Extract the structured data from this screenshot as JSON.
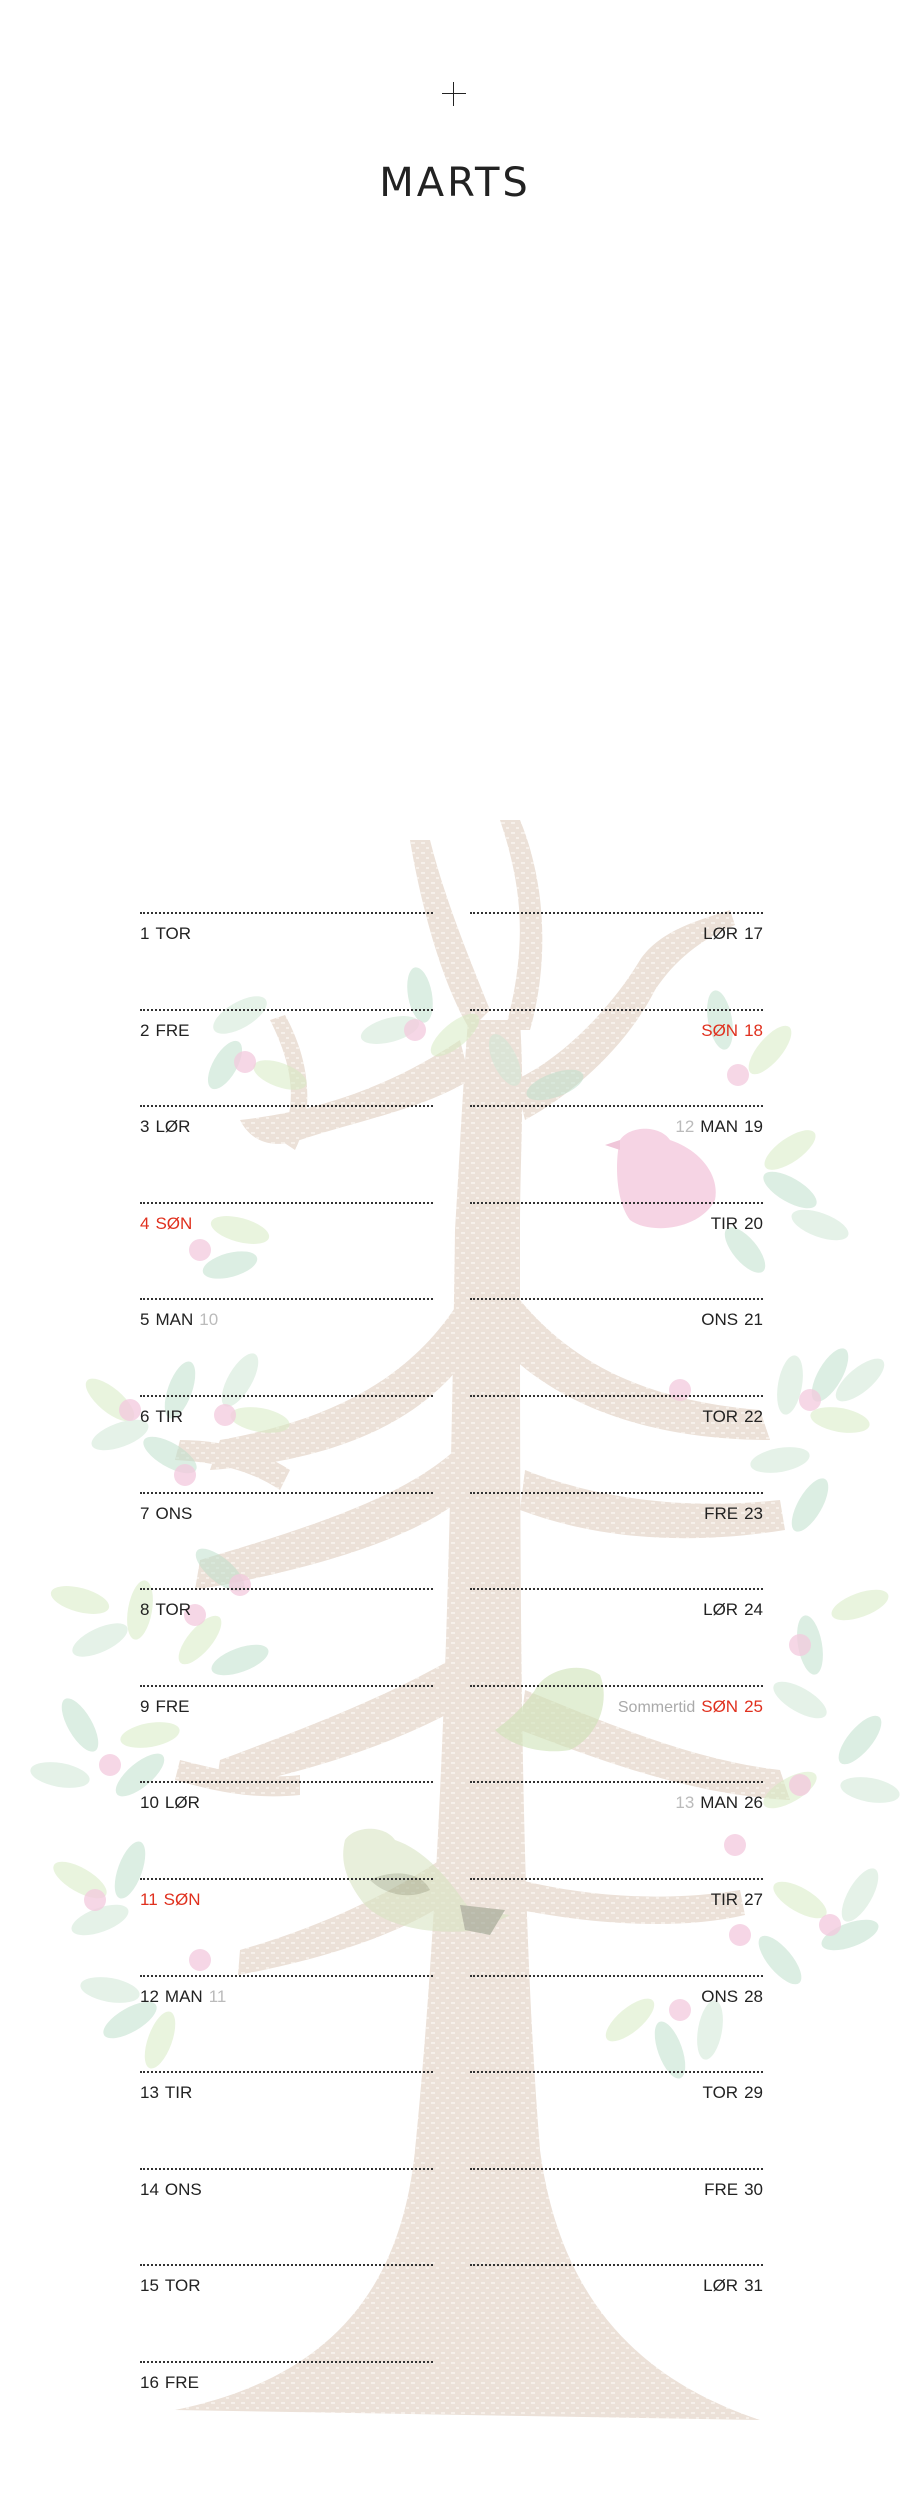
{
  "month": "MARTS",
  "accent_color": "#e0301e",
  "left_days": [
    {
      "num": "1",
      "day": "TOR",
      "week": "",
      "sunday": false
    },
    {
      "num": "2",
      "day": "FRE",
      "week": "",
      "sunday": false
    },
    {
      "num": "3",
      "day": "LØR",
      "week": "",
      "sunday": false
    },
    {
      "num": "4",
      "day": "SØN",
      "week": "",
      "sunday": true
    },
    {
      "num": "5",
      "day": "MAN",
      "week": "10",
      "sunday": false
    },
    {
      "num": "6",
      "day": "TIR",
      "week": "",
      "sunday": false
    },
    {
      "num": "7",
      "day": "ONS",
      "week": "",
      "sunday": false
    },
    {
      "num": "8",
      "day": "TOR",
      "week": "",
      "sunday": false
    },
    {
      "num": "9",
      "day": "FRE",
      "week": "",
      "sunday": false
    },
    {
      "num": "10",
      "day": "LØR",
      "week": "",
      "sunday": false
    },
    {
      "num": "11",
      "day": "SØN",
      "week": "",
      "sunday": true
    },
    {
      "num": "12",
      "day": "MAN",
      "week": "11",
      "sunday": false
    },
    {
      "num": "13",
      "day": "TIR",
      "week": "",
      "sunday": false
    },
    {
      "num": "14",
      "day": "ONS",
      "week": "",
      "sunday": false
    },
    {
      "num": "15",
      "day": "TOR",
      "week": "",
      "sunday": false
    },
    {
      "num": "16",
      "day": "FRE",
      "week": "",
      "sunday": false
    }
  ],
  "right_days": [
    {
      "num": "17",
      "day": "LØR",
      "week": "",
      "note": "",
      "sunday": false
    },
    {
      "num": "18",
      "day": "SØN",
      "week": "",
      "note": "",
      "sunday": true
    },
    {
      "num": "19",
      "day": "MAN",
      "week": "12",
      "note": "",
      "sunday": false
    },
    {
      "num": "20",
      "day": "TIR",
      "week": "",
      "note": "",
      "sunday": false
    },
    {
      "num": "21",
      "day": "ONS",
      "week": "",
      "note": "",
      "sunday": false
    },
    {
      "num": "22",
      "day": "TOR",
      "week": "",
      "note": "",
      "sunday": false
    },
    {
      "num": "23",
      "day": "FRE",
      "week": "",
      "note": "",
      "sunday": false
    },
    {
      "num": "24",
      "day": "LØR",
      "week": "",
      "note": "",
      "sunday": false
    },
    {
      "num": "25",
      "day": "SØN",
      "week": "",
      "note": "Sommertid",
      "sunday": true
    },
    {
      "num": "26",
      "day": "MAN",
      "week": "13",
      "note": "",
      "sunday": false
    },
    {
      "num": "27",
      "day": "TIR",
      "week": "",
      "note": "",
      "sunday": false
    },
    {
      "num": "28",
      "day": "ONS",
      "week": "",
      "note": "",
      "sunday": false
    },
    {
      "num": "29",
      "day": "TOR",
      "week": "",
      "note": "",
      "sunday": false
    },
    {
      "num": "30",
      "day": "FRE",
      "week": "",
      "note": "",
      "sunday": false
    },
    {
      "num": "31",
      "day": "LØR",
      "week": "",
      "note": "",
      "sunday": false
    }
  ]
}
